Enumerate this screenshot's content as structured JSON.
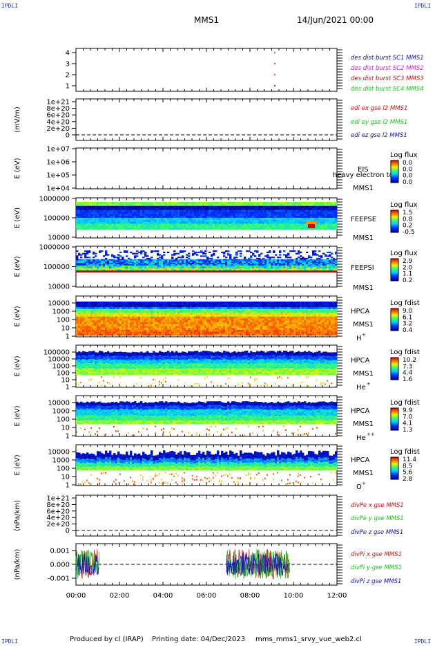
{
  "header": {
    "corner_tl": "IPDLI",
    "corner_tr": "IPDLI",
    "corner_bl": "IPDLI",
    "corner_br": "IPDLI",
    "spacecraft": "MMS1",
    "datetime": "14/Jun/2021 00:00"
  },
  "footer": {
    "producer": "Produced by cl (IRAP)",
    "printing": "Printing date: 04/Dec/2023",
    "script": "mms_mms1_srvy_vue_web2.cl"
  },
  "colors": {
    "blue": "#1010c8",
    "magenta": "#d020d0",
    "red": "#d01010",
    "green": "#10c810"
  },
  "chart_data": [
    {
      "id": "desdist",
      "type": "scatter",
      "yticks": [
        "1",
        "2",
        "3",
        "4"
      ],
      "legend": [
        {
          "name": "des dist burst SC1 MMS1",
          "color": "#1010c8"
        },
        {
          "name": "des dist burst SC2 MMS2",
          "color": "#d020d0"
        },
        {
          "name": "des dist burst SC3 MMS3",
          "color": "#d01010"
        },
        {
          "name": "des dist burst SC4 MMS4",
          "color": "#10c810"
        }
      ],
      "points": [
        {
          "x": "09:08",
          "y": 4,
          "color": "#10c810"
        },
        {
          "x": "09:08",
          "y": 3,
          "color": "#d01010"
        },
        {
          "x": "09:08",
          "y": 2,
          "color": "#d020d0"
        },
        {
          "x": "09:08",
          "y": 1,
          "color": "#1010c8"
        }
      ]
    },
    {
      "id": "edi",
      "type": "line",
      "ylabel": "(mV/m)",
      "yticks": [
        "0",
        "2e+20",
        "4e+20",
        "6e+20",
        "8e+20",
        "1e+21"
      ],
      "legend": [
        {
          "name": "edi ex gse l2 MMS1",
          "color": "#d01010"
        },
        {
          "name": "edi ey gse l2 MMS1",
          "color": "#10c810"
        },
        {
          "name": "edi ez gse l2 MMS1",
          "color": "#1010c8"
        }
      ]
    },
    {
      "id": "eis",
      "type": "heatmap",
      "ylabel": "E (eV)",
      "yticks": [
        "1e+04",
        "1e+05",
        "1e+06",
        "1e+07"
      ],
      "instrument": "EIS",
      "spacecraft": "MMS1",
      "overlay_text": "heavy electron tof",
      "colorbar_title": "Log flux",
      "colorbar_ticks": [
        "0.0",
        "0.0",
        "0.0",
        "0.0"
      ]
    },
    {
      "id": "feepse",
      "type": "heatmap",
      "ylabel": "E (eV)",
      "yticks": [
        "10000",
        "100000",
        "1000000"
      ],
      "instrument": "FEEPSE",
      "spacecraft": "MMS1",
      "colorbar_title": "Log flux",
      "colorbar_ticks": [
        "1.5",
        "0.8",
        "0.2",
        "-0.5"
      ]
    },
    {
      "id": "feepsi",
      "type": "heatmap",
      "ylabel": "E (eV)",
      "yticks": [
        "10000",
        "100000",
        "1000000"
      ],
      "instrument": "FEEPSI",
      "spacecraft": "MMS1",
      "colorbar_title": "Log flux",
      "colorbar_ticks": [
        "2.9",
        "2.0",
        "1.1",
        "0.2"
      ]
    },
    {
      "id": "hpca_h",
      "type": "heatmap",
      "ylabel": "E (eV)",
      "yticks": [
        "1",
        "10",
        "100",
        "1000",
        "10000"
      ],
      "instrument": "HPCA",
      "spacecraft": "MMS1",
      "species": "H",
      "species_sup": "+",
      "colorbar_title": "Log fdist",
      "colorbar_ticks": [
        "9.0",
        "6.1",
        "3.2",
        "0.4"
      ]
    },
    {
      "id": "hpca_he",
      "type": "heatmap",
      "ylabel": "E (eV)",
      "yticks": [
        "1",
        "10",
        "100",
        "1000",
        "10000",
        "100000"
      ],
      "instrument": "HPCA",
      "spacecraft": "MMS1",
      "species": "He",
      "species_sup": "+",
      "colorbar_title": "Log fdist",
      "colorbar_ticks": [
        "10.2",
        "7.3",
        "4.4",
        "1.6"
      ]
    },
    {
      "id": "hpca_hepp",
      "type": "heatmap",
      "ylabel": "E (eV)",
      "yticks": [
        "1",
        "10",
        "100",
        "1000",
        "10000"
      ],
      "instrument": "HPCA",
      "spacecraft": "MMS1",
      "species": "He",
      "species_sup": "++",
      "colorbar_title": "Log fdist",
      "colorbar_ticks": [
        "9.9",
        "7.0",
        "4.1",
        "1.3"
      ]
    },
    {
      "id": "hpca_o",
      "type": "heatmap",
      "ylabel": "E (eV)",
      "yticks": [
        "1",
        "10",
        "100",
        "1000",
        "10000"
      ],
      "instrument": "HPCA",
      "spacecraft": "MMS1",
      "species": "O",
      "species_sup": "+",
      "colorbar_title": "Log fdist",
      "colorbar_ticks": [
        "11.4",
        "8.5",
        "5.6",
        "2.8"
      ]
    },
    {
      "id": "divpe",
      "type": "line",
      "ylabel": "(nPa/km)",
      "yticks": [
        "0",
        "2e+20",
        "4e+20",
        "6e+20",
        "8e+20",
        "1e+21"
      ],
      "legend": [
        {
          "name": "divPe x gse MMS1",
          "color": "#d01010"
        },
        {
          "name": "divPe y gse MMS1",
          "color": "#10c810"
        },
        {
          "name": "divPe z gse MMS1",
          "color": "#1010c8"
        }
      ]
    },
    {
      "id": "divpi",
      "type": "line",
      "ylabel": "(nPa/km)",
      "yticks": [
        "-0.001",
        "0.000",
        "0.001"
      ],
      "legend": [
        {
          "name": "divPi x gse MMS1",
          "color": "#d01010"
        },
        {
          "name": "divPi y gse MMS1",
          "color": "#10c810"
        },
        {
          "name": "divPi z gse MMS1",
          "color": "#1010c8"
        }
      ],
      "data_intervals": [
        [
          "00:00",
          "01:05"
        ],
        [
          "06:55",
          "09:50"
        ]
      ],
      "ylim": [
        -0.0015,
        0.0015
      ]
    }
  ],
  "xaxis": {
    "ticks": [
      "00:00",
      "02:00",
      "04:00",
      "06:00",
      "08:00",
      "10:00",
      "12:00"
    ]
  }
}
